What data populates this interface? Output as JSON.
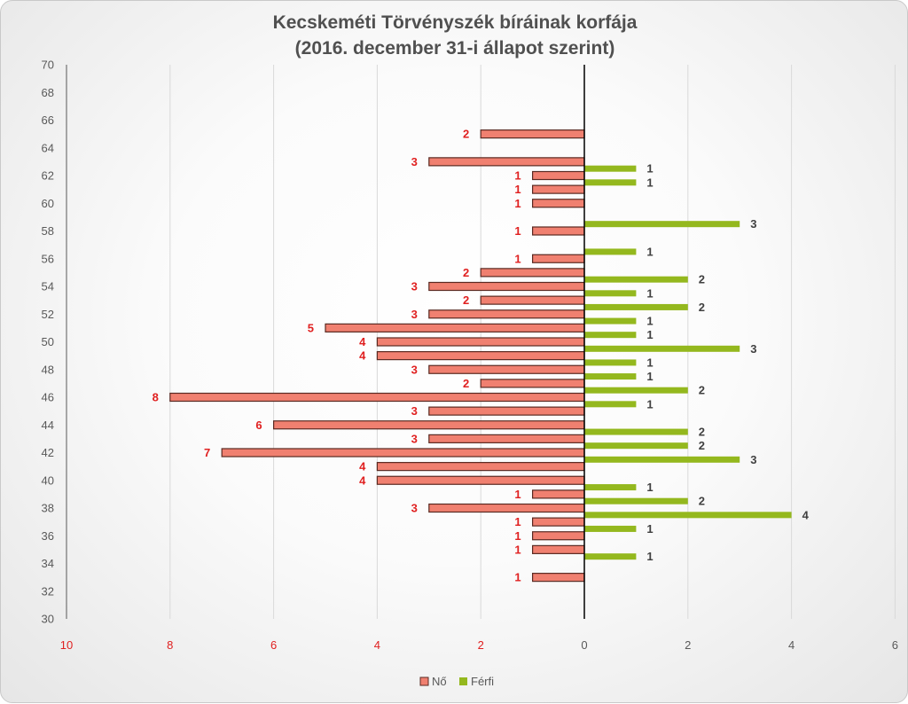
{
  "chart_data": {
    "type": "bar",
    "orientation": "horizontal",
    "title": [
      "Kecskeméti Törvényszék bíráinak korfája",
      "(2016. december 31-i állapot szerint)"
    ],
    "y_axis": {
      "min": 30,
      "max": 70,
      "step": 2,
      "ticks": [
        "70",
        "68",
        "66",
        "64",
        "62",
        "60",
        "58",
        "56",
        "54",
        "52",
        "50",
        "48",
        "46",
        "44",
        "42",
        "40",
        "38",
        "36",
        "34",
        "32",
        "30"
      ]
    },
    "x_axis": {
      "left_ticks": [
        "10",
        "8",
        "6",
        "4",
        "2"
      ],
      "center_tick": "0",
      "right_ticks": [
        "2",
        "4",
        "6"
      ],
      "left_max": 10,
      "right_max": 6
    },
    "grid": true,
    "legend_position": "bottom",
    "colors": {
      "female": "#f08070",
      "male": "#94b81e",
      "female_label": "#e02020",
      "male_label": "#404040"
    },
    "series": [
      {
        "name": "Nő",
        "side": "left",
        "points": [
          {
            "age": 65,
            "value": 2,
            "label": "2"
          },
          {
            "age": 63,
            "value": 3,
            "label": "3"
          },
          {
            "age": 62,
            "value": 1,
            "label": "1"
          },
          {
            "age": 61,
            "value": 1,
            "label": "1"
          },
          {
            "age": 60,
            "value": 1,
            "label": "1"
          },
          {
            "age": 58,
            "value": 1,
            "label": "1"
          },
          {
            "age": 56,
            "value": 1,
            "label": "1"
          },
          {
            "age": 55,
            "value": 2,
            "label": "2"
          },
          {
            "age": 54,
            "value": 3,
            "label": "3"
          },
          {
            "age": 53,
            "value": 2,
            "label": "2"
          },
          {
            "age": 52,
            "value": 3,
            "label": "3"
          },
          {
            "age": 51,
            "value": 5,
            "label": "5"
          },
          {
            "age": 50,
            "value": 4,
            "label": "4"
          },
          {
            "age": 49,
            "value": 4,
            "label": "4"
          },
          {
            "age": 48,
            "value": 3,
            "label": "3"
          },
          {
            "age": 47,
            "value": 2,
            "label": "2"
          },
          {
            "age": 46,
            "value": 8,
            "label": "8"
          },
          {
            "age": 45,
            "value": 3,
            "label": "3"
          },
          {
            "age": 44,
            "value": 6,
            "label": "6"
          },
          {
            "age": 43,
            "value": 3,
            "label": "3"
          },
          {
            "age": 42,
            "value": 7,
            "label": "7"
          },
          {
            "age": 41,
            "value": 4,
            "label": "4"
          },
          {
            "age": 40,
            "value": 4,
            "label": "4"
          },
          {
            "age": 39,
            "value": 1,
            "label": "1"
          },
          {
            "age": 38,
            "value": 3,
            "label": "3"
          },
          {
            "age": 37,
            "value": 1,
            "label": "1"
          },
          {
            "age": 36,
            "value": 1,
            "label": "1"
          },
          {
            "age": 35,
            "value": 1,
            "label": "1"
          },
          {
            "age": 33,
            "value": 1,
            "label": "1"
          }
        ]
      },
      {
        "name": "Férfi",
        "side": "right",
        "points": [
          {
            "age": 62.5,
            "value": 1,
            "label": "1"
          },
          {
            "age": 61.5,
            "value": 1,
            "label": "1"
          },
          {
            "age": 58.5,
            "value": 3,
            "label": "3"
          },
          {
            "age": 56.5,
            "value": 1,
            "label": "1"
          },
          {
            "age": 54.5,
            "value": 2,
            "label": "2"
          },
          {
            "age": 53.5,
            "value": 1,
            "label": "1"
          },
          {
            "age": 52.5,
            "value": 2,
            "label": "2"
          },
          {
            "age": 51.5,
            "value": 1,
            "label": "1"
          },
          {
            "age": 50.5,
            "value": 1,
            "label": "1"
          },
          {
            "age": 49.5,
            "value": 3,
            "label": "3"
          },
          {
            "age": 48.5,
            "value": 1,
            "label": "1"
          },
          {
            "age": 47.5,
            "value": 1,
            "label": "1"
          },
          {
            "age": 46.5,
            "value": 2,
            "label": "2"
          },
          {
            "age": 45.5,
            "value": 1,
            "label": "1"
          },
          {
            "age": 43.5,
            "value": 2,
            "label": "2"
          },
          {
            "age": 42.5,
            "value": 2,
            "label": "2"
          },
          {
            "age": 41.5,
            "value": 3,
            "label": "3"
          },
          {
            "age": 39.5,
            "value": 1,
            "label": "1"
          },
          {
            "age": 38.5,
            "value": 2,
            "label": "2"
          },
          {
            "age": 37.5,
            "value": 4,
            "label": "4"
          },
          {
            "age": 36.5,
            "value": 1,
            "label": "1"
          },
          {
            "age": 34.5,
            "value": 1,
            "label": "1"
          }
        ]
      }
    ],
    "legend": [
      {
        "label": "Nő",
        "color": "#f08070"
      },
      {
        "label": "Férfi",
        "color": "#94b81e"
      }
    ]
  }
}
